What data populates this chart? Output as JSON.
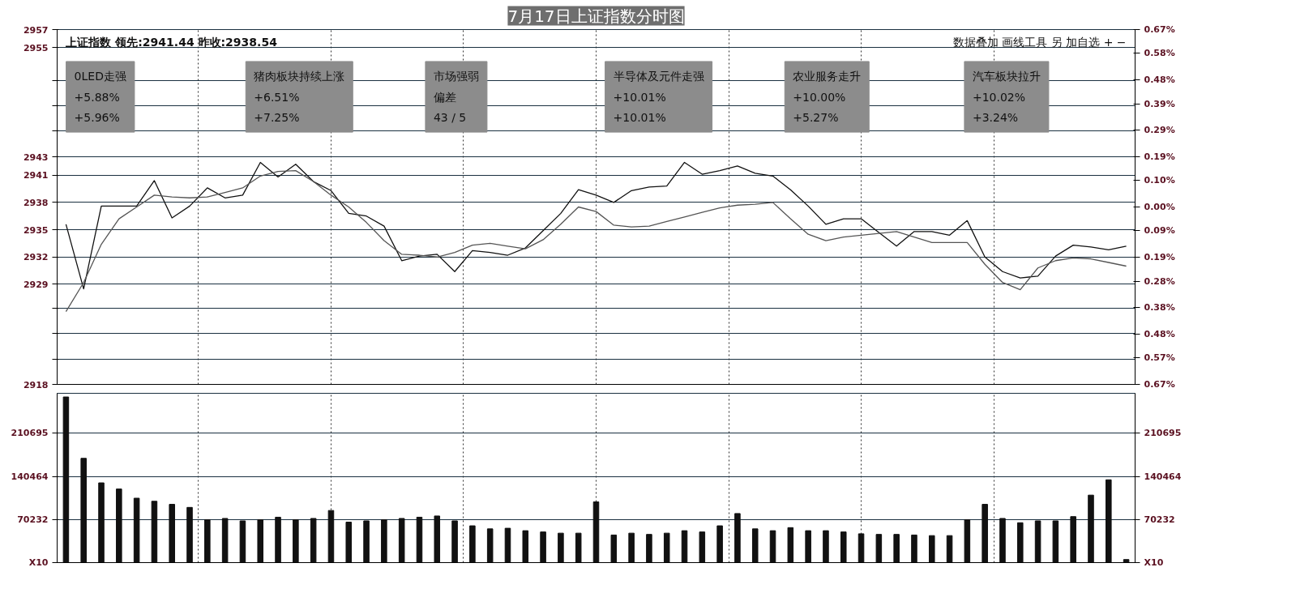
{
  "chart_data": [
    {
      "type": "line",
      "title": "7月17日上证指数分时图",
      "annotations": [
        "上证指数 领先:2941.44 昨收:2938.54",
        "数据叠加 画线工具 另 加自选 + −",
        "0LED走强",
        "+5.88%",
        "+5.96%",
        "猪肉板块持续上涨",
        "+6.51%",
        "+7.25%",
        "市场强弱",
        "偏差",
        "43 / 5",
        "半导体及元件走强",
        "+10.01%",
        "+10.01%",
        "农业服务走升",
        "+10.00%",
        "+5.27%",
        "汽车板块拉升",
        "+10.02%",
        "+3.24%"
      ],
      "categories": [
        null,
        null,
        null,
        null,
        null,
        null,
        null,
        null,
        null,
        null,
        null,
        null,
        null,
        null,
        null,
        null,
        null,
        null,
        null,
        null,
        null,
        null,
        null,
        null,
        null,
        null,
        null,
        null,
        null,
        null,
        null,
        null,
        null,
        null,
        null,
        null,
        null,
        null,
        null,
        null,
        null,
        null,
        null,
        null,
        null,
        null,
        null,
        null,
        null,
        null,
        null,
        null,
        null,
        null,
        null,
        null,
        null,
        null,
        null,
        null,
        null
      ],
      "ylim": [
        2918,
        2957
      ],
      "yticks": [
        2918,
        {
          "value": 2920.8,
          "label": null
        },
        {
          "value": 2923.6,
          "label": null
        },
        {
          "value": 2926.4,
          "label": null
        },
        2929,
        2932,
        2935,
        2938,
        2941,
        2943,
        {
          "value": 2945.9,
          "label": null
        },
        {
          "value": 2948.6,
          "label": null
        },
        {
          "value": 2951.4,
          "label": null
        },
        2955,
        2957
      ],
      "y2lim": [
        -0.67,
        0.67
      ],
      "y2ticks": [
        {
          "value": -0.67,
          "label": "0.67%"
        },
        {
          "value": -0.57,
          "label": "0.57%"
        },
        {
          "value": -0.48,
          "label": "0.48%"
        },
        {
          "value": -0.38,
          "label": "0.38%"
        },
        {
          "value": -0.28,
          "label": "0.28%"
        },
        {
          "value": -0.19,
          "label": "0.19%"
        },
        {
          "value": -0.09,
          "label": "0.09%"
        },
        {
          "value": 0,
          "label": "0.00%"
        },
        {
          "value": 0.1,
          "label": "0.10%"
        },
        {
          "value": 0.19,
          "label": "0.19%"
        },
        {
          "value": 0.29,
          "label": "0.29%"
        },
        {
          "value": 0.39,
          "label": "0.39%"
        },
        {
          "value": 0.48,
          "label": "0.48%"
        },
        {
          "value": 0.58,
          "label": "0.58%"
        },
        {
          "value": 0.67,
          "label": "0.67%"
        }
      ],
      "grid": true,
      "tick_labels": "y",
      "line_style": "solid",
      "series": [
        {
          "color": "#111111",
          "values": [
            2935.6,
            2928.5,
            2937.6,
            2937.6,
            2937.6,
            2940.4,
            2936.3,
            2937.6,
            2939.6,
            2938.5,
            2938.8,
            2942.4,
            2940.8,
            2942.2,
            2940.3,
            2939.3,
            2936.8,
            2936.5,
            2935.4,
            2931.6,
            2932.1,
            2932.3,
            2930.4,
            2932.7,
            2932.5,
            2932.2,
            2933.0,
            2934.9,
            2936.8,
            2939.4,
            2938.8,
            2938.0,
            2939.3,
            2939.7,
            2939.8,
            2942.4,
            2941.1,
            2941.5,
            2942.0,
            2941.2,
            2940.9,
            2939.4,
            2937.6,
            2935.6,
            2936.2,
            2936.2,
            2934.7,
            2933.2,
            2934.8,
            2934.8,
            2934.4,
            2936.0,
            2932.0,
            2930.4,
            2929.7,
            2929.9,
            2932.1,
            2933.3,
            2933.1,
            2932.8,
            2933.2
          ]
        },
        {
          "color": "#555555",
          "values": [
            2926.0,
            2929.2,
            2933.4,
            2936.2,
            2937.5,
            2938.8,
            2938.6,
            2938.5,
            2938.6,
            2939.1,
            2939.6,
            2940.9,
            2941.4,
            2941.5,
            2940.3,
            2938.8,
            2937.5,
            2935.8,
            2933.8,
            2932.3,
            2932.2,
            2932.0,
            2932.5,
            2933.3,
            2933.5,
            2933.2,
            2932.9,
            2933.9,
            2935.6,
            2937.5,
            2937.0,
            2935.5,
            2935.3,
            2935.4,
            2935.9,
            2936.4,
            2936.9,
            2937.4,
            2937.7,
            2937.8,
            2938.0,
            2936.2,
            2934.5,
            2933.8,
            2934.2,
            2934.4,
            2934.6,
            2934.8,
            2934.2,
            2933.6,
            2933.6,
            2933.6,
            2931.2,
            2929.2,
            2928.4,
            2930.8,
            2931.6,
            2931.9,
            2931.8,
            2931.4,
            2931.0
          ]
        }
      ]
    },
    {
      "type": "bar",
      "ylim": [
        0,
        276000
      ],
      "categories": [
        null,
        null,
        null,
        null,
        null,
        null,
        null,
        null,
        null,
        null,
        null,
        null,
        null,
        null,
        null,
        null,
        null,
        null,
        null,
        null,
        null,
        null,
        null,
        null,
        null,
        null,
        null,
        null,
        null,
        null,
        null,
        null,
        null,
        null,
        null,
        null,
        null,
        null,
        null,
        null,
        null,
        null,
        null,
        null,
        null,
        null,
        null,
        null,
        null,
        null,
        null,
        null,
        null,
        null,
        null,
        null,
        null,
        null,
        null,
        null,
        null
      ],
      "yticks": [
        {
          "value": 0,
          "label": "X10"
        },
        70232,
        140464,
        210695
      ],
      "y2lim": [
        0,
        276000
      ],
      "y2ticks": [
        {
          "value": 0,
          "label": "X10"
        },
        70232,
        140464,
        210695
      ],
      "grid": true,
      "tick_labels": "y",
      "color": "#111111",
      "values": [
        270000,
        170000,
        130000,
        120000,
        105000,
        100000,
        95000,
        90000,
        70000,
        72000,
        68000,
        70000,
        74000,
        70000,
        72000,
        85000,
        66000,
        68000,
        70000,
        72000,
        74000,
        76000,
        68000,
        60000,
        55000,
        56000,
        52000,
        50000,
        48000,
        48000,
        99000,
        45000,
        48000,
        46000,
        48000,
        52000,
        50000,
        60000,
        80000,
        55000,
        52000,
        57000,
        52000,
        52000,
        50000,
        47000,
        46000,
        46000,
        45000,
        44000,
        44000,
        70000,
        95000,
        72000,
        65000,
        68000,
        68000,
        75000,
        110000,
        135000,
        5000
      ]
    }
  ]
}
